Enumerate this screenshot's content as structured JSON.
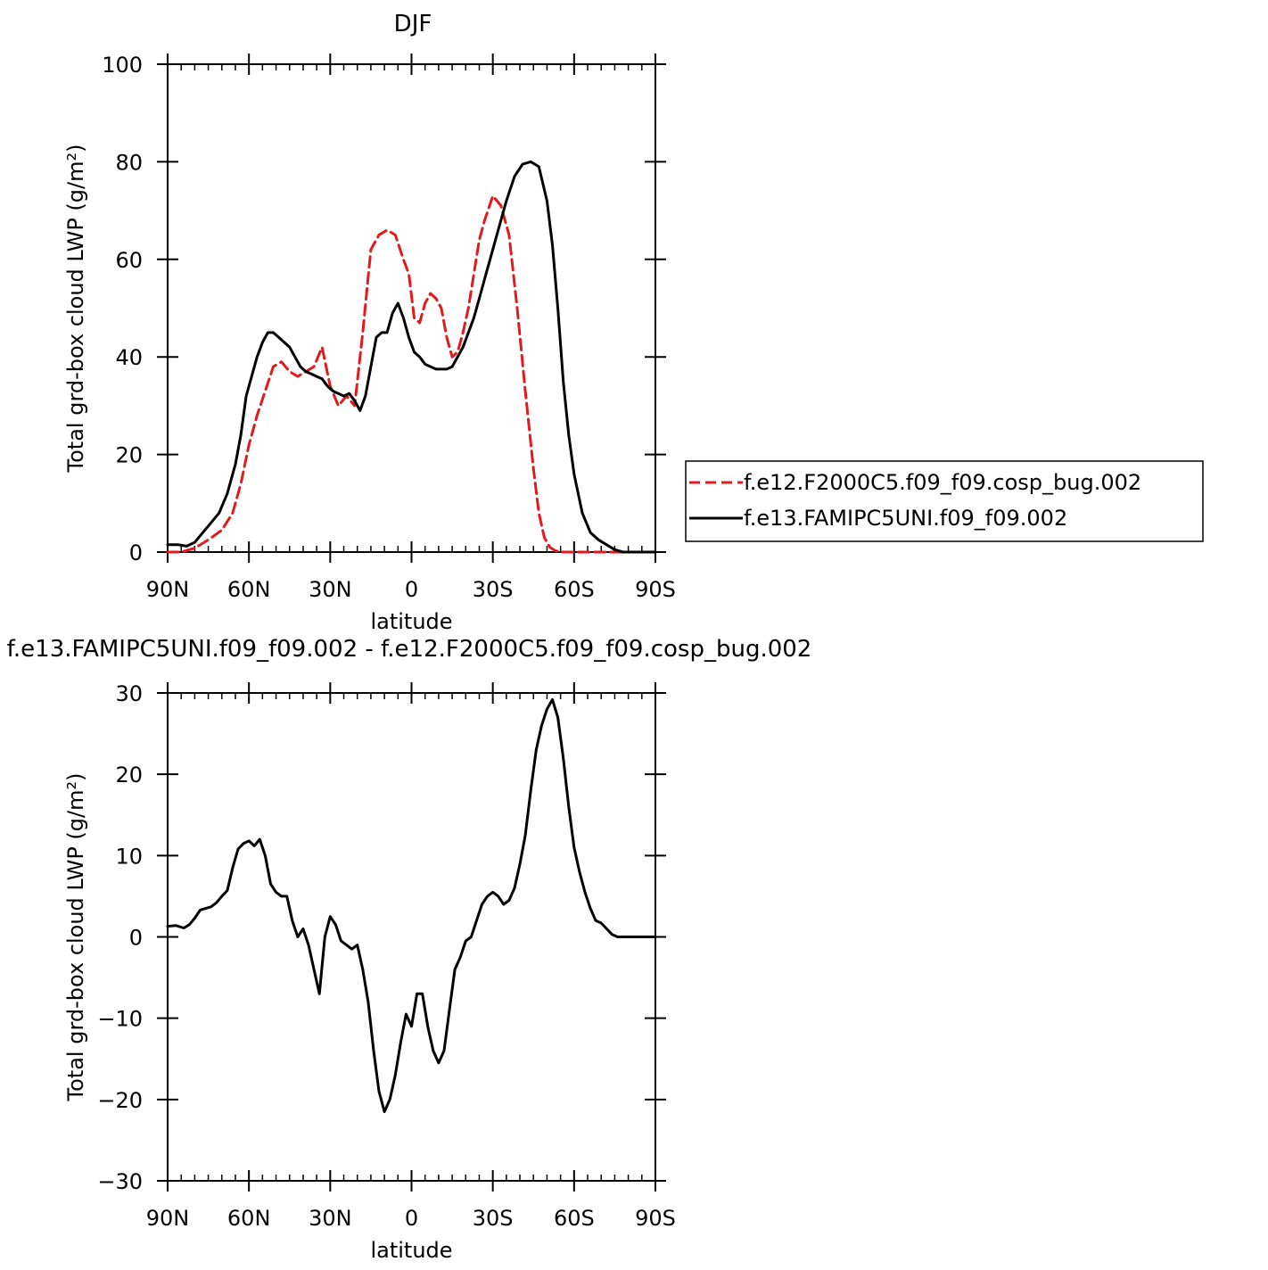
{
  "chart_data": [
    {
      "type": "line",
      "title": "DJF",
      "xlabel": "latitude",
      "ylabel": "Total grd-box cloud LWP (g/m²)",
      "xlim": [
        90,
        -90
      ],
      "ylim": [
        0,
        100
      ],
      "x_ticks": [
        {
          "value": 90,
          "label": "90N"
        },
        {
          "value": 60,
          "label": "60N"
        },
        {
          "value": 30,
          "label": "30N"
        },
        {
          "value": 0,
          "label": "0"
        },
        {
          "value": -30,
          "label": "30S"
        },
        {
          "value": -60,
          "label": "60S"
        },
        {
          "value": -90,
          "label": "90S"
        }
      ],
      "y_ticks": [
        {
          "value": 0,
          "label": "0"
        },
        {
          "value": 20,
          "label": "20"
        },
        {
          "value": 40,
          "label": "40"
        },
        {
          "value": 60,
          "label": "60"
        },
        {
          "value": 80,
          "label": "80"
        },
        {
          "value": 100,
          "label": "100"
        }
      ],
      "grid": false,
      "legend": "right",
      "series": [
        {
          "name": "f.e12.F2000C5.f09_f09.cosp_bug.002",
          "color": "#e31a1c",
          "dash": "dashed",
          "x": [
            90,
            85,
            80,
            75,
            70,
            66,
            63,
            60,
            57,
            54,
            51,
            48,
            45,
            42,
            39,
            36,
            33,
            30,
            27,
            24,
            21,
            18,
            15,
            12,
            9,
            6,
            3,
            1,
            -1,
            -3,
            -5,
            -7,
            -9,
            -11,
            -13,
            -15,
            -17,
            -19,
            -21,
            -23,
            -25,
            -27,
            -30,
            -33,
            -36,
            -39,
            -42,
            -45,
            -47,
            -49,
            -51,
            -53,
            -55,
            -57,
            -60,
            -63,
            -66,
            -69,
            -72,
            -75,
            -78,
            -81,
            -84,
            -87,
            -90
          ],
          "y": [
            0,
            0,
            0.8,
            2.5,
            4.5,
            8,
            14,
            22,
            28,
            33,
            38,
            39,
            37,
            36,
            37,
            38,
            42,
            34,
            30,
            32,
            30,
            45,
            62,
            65,
            66,
            65,
            60,
            57,
            48,
            47,
            51,
            53,
            52,
            50,
            44,
            40,
            41,
            45,
            50,
            57,
            64,
            68,
            73,
            71,
            65,
            50,
            33,
            17,
            8,
            3,
            1,
            0.3,
            0,
            0,
            0,
            0,
            0,
            0,
            0,
            0,
            0,
            0,
            0,
            0,
            0
          ]
        },
        {
          "name": "f.e13.FAMIPC5UNI.f09_f09.002",
          "color": "#000000",
          "dash": "solid",
          "x": [
            90,
            86,
            83,
            80,
            77,
            74,
            71,
            68,
            65,
            63,
            61,
            59,
            57,
            55,
            53,
            51,
            49,
            47,
            45,
            43,
            41,
            39,
            37,
            35,
            33,
            31,
            29,
            27,
            25,
            23,
            21,
            19,
            17,
            15,
            13,
            11,
            9,
            7,
            5,
            3,
            1,
            -1,
            -3,
            -5,
            -7,
            -9,
            -11,
            -13,
            -15,
            -17,
            -19,
            -21,
            -23,
            -25,
            -27,
            -29,
            -32,
            -35,
            -38,
            -41,
            -44,
            -47,
            -50,
            -52,
            -54,
            -56,
            -58,
            -60,
            -63,
            -66,
            -69,
            -72,
            -75,
            -78,
            -81,
            -84,
            -87,
            -90
          ],
          "y": [
            1.5,
            1.5,
            1.2,
            2,
            4,
            6,
            8,
            12,
            18,
            24,
            32,
            36,
            40,
            43,
            45,
            45,
            44,
            43,
            42,
            40,
            38,
            37,
            36.5,
            36,
            35.5,
            34,
            33,
            32.5,
            32,
            32.5,
            31,
            29,
            32,
            38,
            44,
            45,
            45,
            49,
            51,
            48,
            44,
            41,
            40,
            38.5,
            38,
            37.5,
            37.5,
            37.5,
            38,
            40,
            42,
            45,
            48,
            52,
            56,
            60,
            66,
            72,
            77,
            79.5,
            80,
            79,
            72,
            63,
            50,
            35,
            24,
            16,
            8,
            4,
            2.5,
            1.5,
            0.5,
            0,
            0,
            0,
            0,
            0
          ]
        }
      ]
    },
    {
      "type": "line",
      "title": "f.e13.FAMIPC5UNI.f09_f09.002 - f.e12.F2000C5.f09_f09.cosp_bug.002",
      "xlabel": "latitude",
      "ylabel": "Total grd-box cloud LWP (g/m²)",
      "xlim": [
        90,
        -90
      ],
      "ylim": [
        -30,
        30
      ],
      "x_ticks": [
        {
          "value": 90,
          "label": "90N"
        },
        {
          "value": 60,
          "label": "60N"
        },
        {
          "value": 30,
          "label": "30N"
        },
        {
          "value": 0,
          "label": "0"
        },
        {
          "value": -30,
          "label": "30S"
        },
        {
          "value": -60,
          "label": "60S"
        },
        {
          "value": -90,
          "label": "90S"
        }
      ],
      "y_ticks": [
        {
          "value": -30,
          "label": "−30"
        },
        {
          "value": -20,
          "label": "−20"
        },
        {
          "value": -10,
          "label": "−10"
        },
        {
          "value": 0,
          "label": "0"
        },
        {
          "value": 10,
          "label": "10"
        },
        {
          "value": 20,
          "label": "20"
        },
        {
          "value": 30,
          "label": "30"
        }
      ],
      "grid": false,
      "series": [
        {
          "color": "#000000",
          "dash": "solid",
          "x": [
            90,
            87,
            84,
            82,
            80,
            78,
            76,
            74,
            72,
            70,
            68,
            66,
            64,
            62,
            60,
            58,
            56,
            54,
            52,
            50,
            48,
            46,
            44,
            42,
            40,
            38,
            36,
            34,
            32,
            30,
            28,
            26,
            24,
            22,
            20,
            18,
            16,
            14,
            12,
            10,
            8,
            6,
            4,
            2,
            0,
            -2,
            -4,
            -6,
            -8,
            -10,
            -12,
            -14,
            -16,
            -18,
            -20,
            -22,
            -24,
            -26,
            -28,
            -30,
            -32,
            -34,
            -36,
            -38,
            -40,
            -42,
            -44,
            -46,
            -48,
            -50,
            -52,
            -54,
            -56,
            -58,
            -60,
            -62,
            -64,
            -66,
            -68,
            -70,
            -72,
            -74,
            -76,
            -78,
            -80,
            -82,
            -84,
            -86,
            -88,
            -90
          ],
          "y": [
            1.3,
            1.4,
            1.1,
            1.5,
            2.3,
            3.3,
            3.5,
            3.7,
            4.2,
            5,
            5.7,
            8.5,
            10.8,
            11.5,
            11.8,
            11.2,
            12,
            10,
            6.5,
            5.5,
            5,
            5,
            2,
            0,
            1,
            -1,
            -4,
            -7,
            0,
            2.5,
            1.5,
            -0.5,
            -1,
            -1.5,
            -1,
            -4,
            -8,
            -14,
            -19,
            -21.5,
            -20,
            -17,
            -13,
            -9.5,
            -11,
            -7,
            -7,
            -11,
            -14,
            -15.5,
            -14,
            -9,
            -4,
            -2.5,
            -0.5,
            0,
            2,
            4,
            5,
            5.5,
            5,
            4,
            4.5,
            6,
            9,
            12.5,
            18,
            23,
            26,
            28,
            29.2,
            27,
            22,
            16,
            11,
            8,
            5.5,
            3.5,
            2,
            1.7,
            1,
            0.3,
            0,
            0,
            0,
            0,
            0,
            0,
            0,
            0
          ]
        }
      ]
    }
  ]
}
